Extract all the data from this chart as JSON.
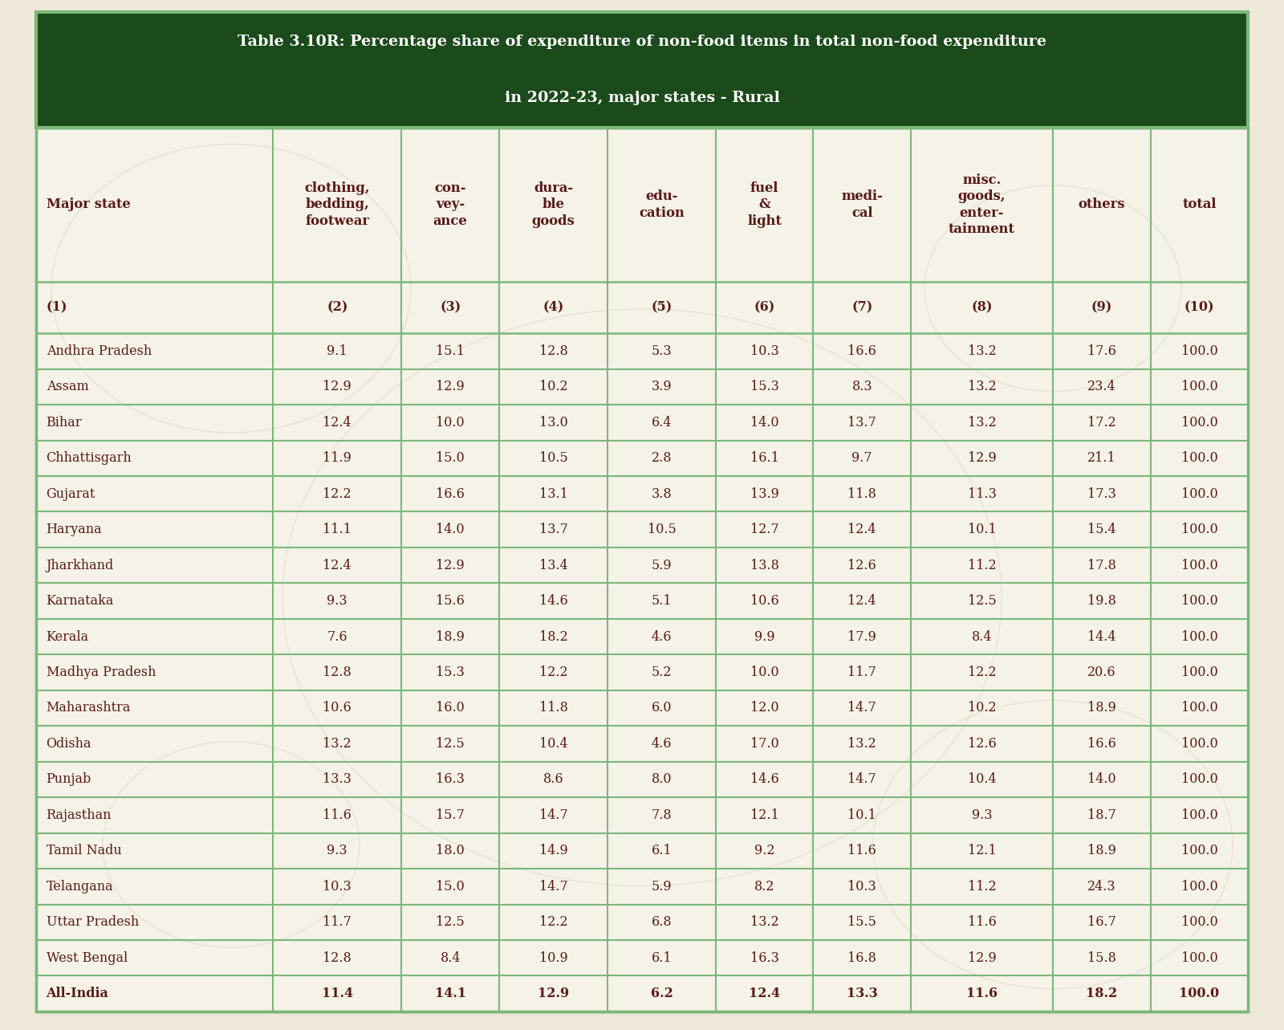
{
  "title_line1": "Table 3.10R: Percentage share of expenditure of non-food items in total non-food expenditure",
  "title_line2": "in 2022-23, major states - Rural",
  "title_bg_color": "#1b4a1b",
  "title_text_color": "#ffffff",
  "header_row": [
    "Major state",
    "clothing,\nbedding,\nfootwear",
    "con-\nvey-\nance",
    "dura-\nble\ngoods",
    "edu-\ncation",
    "fuel\n&\nlight",
    "medi-\ncal",
    "misc.\ngoods,\nenter-\ntainment",
    "others",
    "total"
  ],
  "subheader_row": [
    "(1)",
    "(2)",
    "(3)",
    "(4)",
    "(5)",
    "(6)",
    "(7)",
    "(8)",
    "(9)",
    "(10)"
  ],
  "rows": [
    [
      "Andhra Pradesh",
      "9.1",
      "15.1",
      "12.8",
      "5.3",
      "10.3",
      "16.6",
      "13.2",
      "17.6",
      "100.0"
    ],
    [
      "Assam",
      "12.9",
      "12.9",
      "10.2",
      "3.9",
      "15.3",
      "8.3",
      "13.2",
      "23.4",
      "100.0"
    ],
    [
      "Bihar",
      "12.4",
      "10.0",
      "13.0",
      "6.4",
      "14.0",
      "13.7",
      "13.2",
      "17.2",
      "100.0"
    ],
    [
      "Chhattisgarh",
      "11.9",
      "15.0",
      "10.5",
      "2.8",
      "16.1",
      "9.7",
      "12.9",
      "21.1",
      "100.0"
    ],
    [
      "Gujarat",
      "12.2",
      "16.6",
      "13.1",
      "3.8",
      "13.9",
      "11.8",
      "11.3",
      "17.3",
      "100.0"
    ],
    [
      "Haryana",
      "11.1",
      "14.0",
      "13.7",
      "10.5",
      "12.7",
      "12.4",
      "10.1",
      "15.4",
      "100.0"
    ],
    [
      "Jharkhand",
      "12.4",
      "12.9",
      "13.4",
      "5.9",
      "13.8",
      "12.6",
      "11.2",
      "17.8",
      "100.0"
    ],
    [
      "Karnataka",
      "9.3",
      "15.6",
      "14.6",
      "5.1",
      "10.6",
      "12.4",
      "12.5",
      "19.8",
      "100.0"
    ],
    [
      "Kerala",
      "7.6",
      "18.9",
      "18.2",
      "4.6",
      "9.9",
      "17.9",
      "8.4",
      "14.4",
      "100.0"
    ],
    [
      "Madhya Pradesh",
      "12.8",
      "15.3",
      "12.2",
      "5.2",
      "10.0",
      "11.7",
      "12.2",
      "20.6",
      "100.0"
    ],
    [
      "Maharashtra",
      "10.6",
      "16.0",
      "11.8",
      "6.0",
      "12.0",
      "14.7",
      "10.2",
      "18.9",
      "100.0"
    ],
    [
      "Odisha",
      "13.2",
      "12.5",
      "10.4",
      "4.6",
      "17.0",
      "13.2",
      "12.6",
      "16.6",
      "100.0"
    ],
    [
      "Punjab",
      "13.3",
      "16.3",
      "8.6",
      "8.0",
      "14.6",
      "14.7",
      "10.4",
      "14.0",
      "100.0"
    ],
    [
      "Rajasthan",
      "11.6",
      "15.7",
      "14.7",
      "7.8",
      "12.1",
      "10.1",
      "9.3",
      "18.7",
      "100.0"
    ],
    [
      "Tamil Nadu",
      "9.3",
      "18.0",
      "14.9",
      "6.1",
      "9.2",
      "11.6",
      "12.1",
      "18.9",
      "100.0"
    ],
    [
      "Telangana",
      "10.3",
      "15.0",
      "14.7",
      "5.9",
      "8.2",
      "10.3",
      "11.2",
      "24.3",
      "100.0"
    ],
    [
      "Uttar Pradesh",
      "11.7",
      "12.5",
      "12.2",
      "6.8",
      "13.2",
      "15.5",
      "11.6",
      "16.7",
      "100.0"
    ],
    [
      "West Bengal",
      "12.8",
      "8.4",
      "10.9",
      "6.1",
      "16.3",
      "16.8",
      "12.9",
      "15.8",
      "100.0"
    ],
    [
      "All-India",
      "11.4",
      "14.1",
      "12.9",
      "6.2",
      "12.4",
      "13.3",
      "11.6",
      "18.2",
      "100.0"
    ]
  ],
  "bg_color": "#ede8d8",
  "table_bg": "#f5f2e8",
  "cell_text_color": "#5a1a1a",
  "grid_color": "#7ab87a",
  "col_widths_raw": [
    1.75,
    0.95,
    0.72,
    0.8,
    0.8,
    0.72,
    0.72,
    1.05,
    0.72,
    0.72
  ]
}
